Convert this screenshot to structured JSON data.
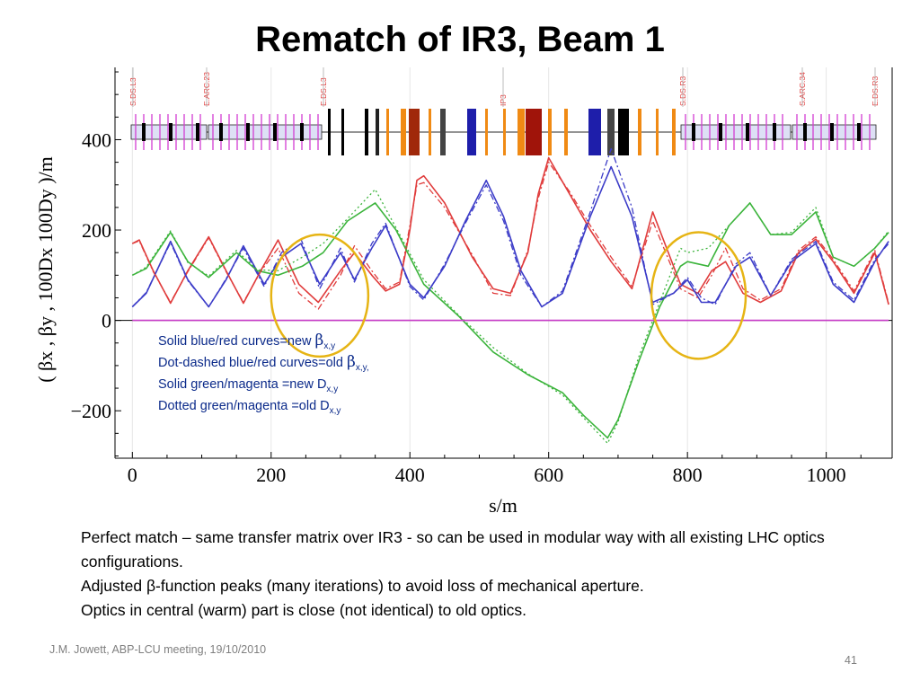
{
  "slide": {
    "title": "Rematch of IR3, Beam 1",
    "body": [
      "Perfect match – same transfer matrix over IR3 - so can be used in modular way with all existing LHC optics configurations.",
      "Adjusted β-function peaks (many iterations) to avoid loss of mechanical aperture.",
      "Optics in central (warm) part is close (not identical) to old optics."
    ],
    "footer_left": "J.M. Jowett, ABP-LCU meeting, 19/10/2010",
    "page_number": "41"
  },
  "chart_data": {
    "type": "line",
    "xlabel": "s/m",
    "ylabel": "( βx , βy , 100Dx  100Dy )/m",
    "xlim": [
      -25,
      1095
    ],
    "ylim": [
      -305,
      560
    ],
    "x_ticks": [
      0,
      200,
      400,
      600,
      800,
      1000
    ],
    "y_ticks": [
      -200,
      0,
      200,
      400
    ],
    "element_markers": [
      "S.DS.L3",
      "E.ARC.23",
      "E.DS.L3",
      "IP3",
      "S.DS.R3",
      "S.ARC.34",
      "E.DS.R3"
    ],
    "legend": [
      {
        "text": "Solid blue/red curves=new ",
        "symbol": "β",
        "sub": "x,y",
        "tail": ""
      },
      {
        "text": "Dot-dashed blue/red curves=old ",
        "symbol": "β",
        "sub": "x,y",
        "tail": ","
      },
      {
        "text": "Solid green/magenta =new D",
        "symbol": "",
        "sub": "x,y",
        "tail": ""
      },
      {
        "text": "Dotted green/magenta =old D",
        "symbol": "",
        "sub": "x,y",
        "tail": ""
      }
    ],
    "annotations": [
      {
        "shape": "ellipse",
        "center": [
          270,
          55
        ],
        "radius": [
          70,
          135
        ]
      },
      {
        "shape": "ellipse",
        "center": [
          816,
          55
        ],
        "radius": [
          68,
          140
        ]
      }
    ],
    "colors": {
      "beta_x": "#e03c3c",
      "beta_y": "#3c3cc8",
      "dispersion_x": "#3cb43c",
      "dispersion_y": "#c83cc8",
      "annotation": "#e6b414",
      "marker_text": "#e03c3c"
    },
    "series": [
      {
        "name": "betx new",
        "style": "solid",
        "color": "#e03c3c",
        "x": [
          0,
          10,
          30,
          55,
          80,
          110,
          135,
          160,
          185,
          210,
          240,
          268,
          300,
          320,
          345,
          365,
          385,
          400,
          410,
          420,
          450,
          490,
          520,
          545,
          570,
          585,
          600,
          630,
          660,
          690,
          720,
          750,
          790,
          815,
          835,
          855,
          880,
          905,
          935,
          960,
          985,
          1010,
          1040,
          1070,
          1090
        ],
        "y": [
          170,
          178,
          110,
          38,
          110,
          185,
          110,
          38,
          110,
          178,
          80,
          40,
          110,
          150,
          100,
          65,
          80,
          200,
          310,
          320,
          260,
          140,
          70,
          60,
          150,
          280,
          360,
          280,
          200,
          130,
          70,
          240,
          80,
          60,
          110,
          130,
          60,
          40,
          65,
          150,
          180,
          130,
          60,
          150,
          35
        ]
      },
      {
        "name": "bety new",
        "style": "solid",
        "color": "#3c3cc8",
        "x": [
          0,
          20,
          55,
          80,
          110,
          135,
          160,
          190,
          215,
          243,
          270,
          300,
          320,
          345,
          365,
          400,
          420,
          450,
          480,
          510,
          535,
          560,
          590,
          620,
          660,
          690,
          720,
          750,
          780,
          800,
          820,
          840,
          870,
          890,
          920,
          950,
          985,
          1010,
          1040,
          1070,
          1090
        ],
        "y": [
          30,
          60,
          175,
          90,
          30,
          90,
          165,
          80,
          140,
          170,
          80,
          150,
          90,
          160,
          210,
          80,
          50,
          120,
          220,
          310,
          230,
          110,
          30,
          60,
          230,
          340,
          230,
          40,
          60,
          90,
          40,
          40,
          120,
          140,
          55,
          130,
          170,
          80,
          40,
          130,
          175
        ]
      },
      {
        "name": "dx new",
        "style": "solid",
        "color": "#3cb43c",
        "x": [
          0,
          20,
          55,
          80,
          110,
          150,
          180,
          210,
          245,
          275,
          310,
          350,
          380,
          420,
          470,
          520,
          570,
          620,
          650,
          685,
          700,
          730,
          760,
          790,
          800,
          830,
          860,
          890,
          920,
          950,
          985,
          1010,
          1040,
          1070,
          1090
        ],
        "y": [
          100,
          115,
          195,
          130,
          95,
          150,
          110,
          100,
          120,
          150,
          220,
          260,
          200,
          80,
          10,
          -70,
          -120,
          -160,
          -210,
          -260,
          -220,
          -90,
          30,
          120,
          130,
          120,
          210,
          260,
          190,
          190,
          240,
          140,
          120,
          160,
          195
        ]
      },
      {
        "name": "betx old",
        "style": "dashed",
        "color": "#e03c3c",
        "x": [
          0,
          10,
          30,
          55,
          80,
          110,
          135,
          160,
          185,
          210,
          240,
          268,
          300,
          320,
          345,
          365,
          385,
          400,
          410,
          420,
          450,
          490,
          520,
          545,
          570,
          585,
          600,
          630,
          660,
          690,
          720,
          750,
          790,
          815,
          835,
          855,
          880,
          905,
          935,
          960,
          985,
          1010,
          1040,
          1070,
          1090
        ],
        "y": [
          170,
          176,
          108,
          40,
          108,
          183,
          108,
          40,
          108,
          160,
          60,
          25,
          100,
          165,
          110,
          70,
          85,
          210,
          300,
          305,
          250,
          145,
          60,
          55,
          155,
          270,
          350,
          285,
          210,
          140,
          75,
          220,
          70,
          50,
          100,
          160,
          70,
          45,
          70,
          155,
          185,
          135,
          65,
          155,
          38
        ]
      },
      {
        "name": "bety old",
        "style": "dashed",
        "color": "#3c3cc8",
        "x": [
          0,
          20,
          55,
          80,
          110,
          135,
          160,
          190,
          215,
          243,
          270,
          300,
          320,
          345,
          365,
          400,
          420,
          450,
          480,
          510,
          535,
          560,
          590,
          620,
          660,
          690,
          720,
          750,
          780,
          800,
          820,
          840,
          870,
          890,
          920,
          950,
          985,
          1010,
          1040,
          1070,
          1090
        ],
        "y": [
          30,
          62,
          172,
          88,
          30,
          92,
          160,
          75,
          150,
          180,
          70,
          160,
          85,
          170,
          215,
          75,
          45,
          125,
          215,
          300,
          220,
          100,
          30,
          65,
          240,
          380,
          250,
          35,
          60,
          95,
          50,
          35,
          125,
          150,
          55,
          135,
          175,
          85,
          45,
          135,
          170
        ]
      },
      {
        "name": "dx old",
        "style": "dotted",
        "color": "#3cb43c",
        "x": [
          0,
          20,
          55,
          80,
          110,
          150,
          180,
          210,
          245,
          275,
          310,
          350,
          380,
          420,
          470,
          520,
          570,
          620,
          650,
          685,
          700,
          730,
          760,
          790,
          800,
          830,
          860,
          890,
          920,
          950,
          985,
          1010,
          1040,
          1070,
          1090
        ],
        "y": [
          100,
          118,
          198,
          128,
          98,
          155,
          112,
          110,
          140,
          170,
          225,
          290,
          205,
          90,
          12,
          -60,
          -118,
          -165,
          -215,
          -272,
          -225,
          -80,
          40,
          160,
          150,
          160,
          210,
          260,
          190,
          195,
          250,
          140,
          120,
          160,
          198
        ]
      },
      {
        "name": "dy new",
        "style": "solid",
        "color": "#c83cc8",
        "x": [
          0,
          1090
        ],
        "y": [
          0,
          0
        ]
      }
    ]
  }
}
